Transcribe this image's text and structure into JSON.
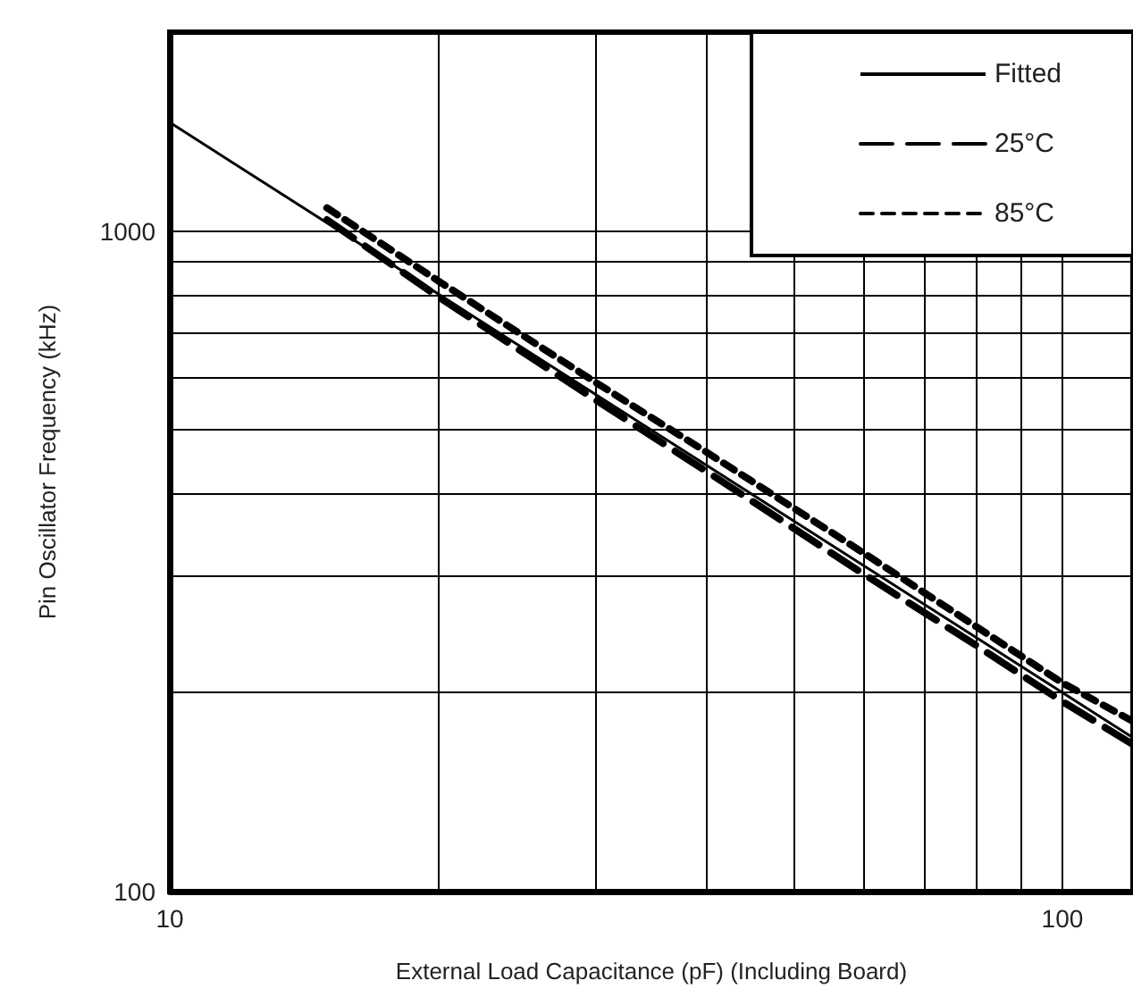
{
  "chart_data": {
    "type": "line",
    "xlabel": "External Load Capacitance (pF) (Including Board)",
    "ylabel": "Pin Oscillator Frequency (kHz)",
    "log": "xy",
    "grid": true,
    "legend": "top right",
    "marker": "none",
    "xlim": [
      10,
      120
    ],
    "ylim": [
      100,
      2000
    ],
    "xticks": [
      10,
      {
        "value": 20,
        "label": null
      },
      {
        "value": 30,
        "label": null
      },
      {
        "value": 40,
        "label": null
      },
      {
        "value": 50,
        "label": null
      },
      {
        "value": 60,
        "label": null
      },
      {
        "value": 70,
        "label": null
      },
      {
        "value": 80,
        "label": null
      },
      {
        "value": 90,
        "label": null
      },
      100
    ],
    "yticks": [
      100,
      {
        "value": 200,
        "label": null
      },
      {
        "value": 300,
        "label": null
      },
      {
        "value": 400,
        "label": null
      },
      {
        "value": 500,
        "label": null
      },
      {
        "value": 600,
        "label": null
      },
      {
        "value": 700,
        "label": null
      },
      {
        "value": 800,
        "label": null
      },
      {
        "value": 900,
        "label": null
      },
      1000
    ],
    "series": [
      {
        "name": "Fitted",
        "color": "#000000",
        "line_style": "solid",
        "x": [
          10,
          120
        ],
        "values": [
          1460,
          171
        ]
      },
      {
        "name": "25°C",
        "color": "#000000",
        "line_style": "dashed",
        "x": [
          15,
          20,
          30,
          40,
          60,
          80,
          100,
          120
        ],
        "values": [
          1040,
          795,
          555,
          432,
          302,
          236,
          194,
          167
        ]
      },
      {
        "name": "85°C",
        "color": "#000000",
        "line_style": "dotted",
        "x": [
          15,
          20,
          30,
          40,
          60,
          80,
          100,
          120
        ],
        "values": [
          1084,
          840,
          590,
          462,
          325,
          252,
          207,
          181
        ]
      }
    ]
  }
}
